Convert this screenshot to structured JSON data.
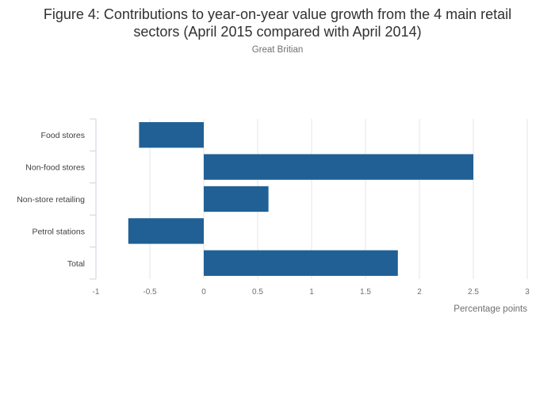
{
  "chart_data": {
    "type": "bar",
    "orientation": "horizontal",
    "title_line1": "Figure 4: Contributions to year-on-year value growth from the 4 main retail",
    "title_line2": "sectors (April 2015 compared with April 2014)",
    "subtitle": "Great Britian",
    "categories": [
      "Food stores",
      "Non-food stores",
      "Non-store retailing",
      "Petrol stations",
      "Total"
    ],
    "values": [
      -0.6,
      2.5,
      0.6,
      -0.7,
      1.8
    ],
    "xlabel": "Percentage points",
    "ylabel": "",
    "xlim": [
      -1,
      3
    ],
    "xticks": [
      -1,
      -0.5,
      0,
      0.5,
      1,
      1.5,
      2,
      2.5,
      3
    ],
    "xtick_labels": [
      "-1",
      "-0.5",
      "0",
      "0.5",
      "1",
      "1.5",
      "2",
      "2.5",
      "3"
    ],
    "grid": true,
    "legend": "none",
    "bar_color": "#206095",
    "grid_color": "#e6e6e6",
    "axis_color": "#c8d3e0"
  }
}
